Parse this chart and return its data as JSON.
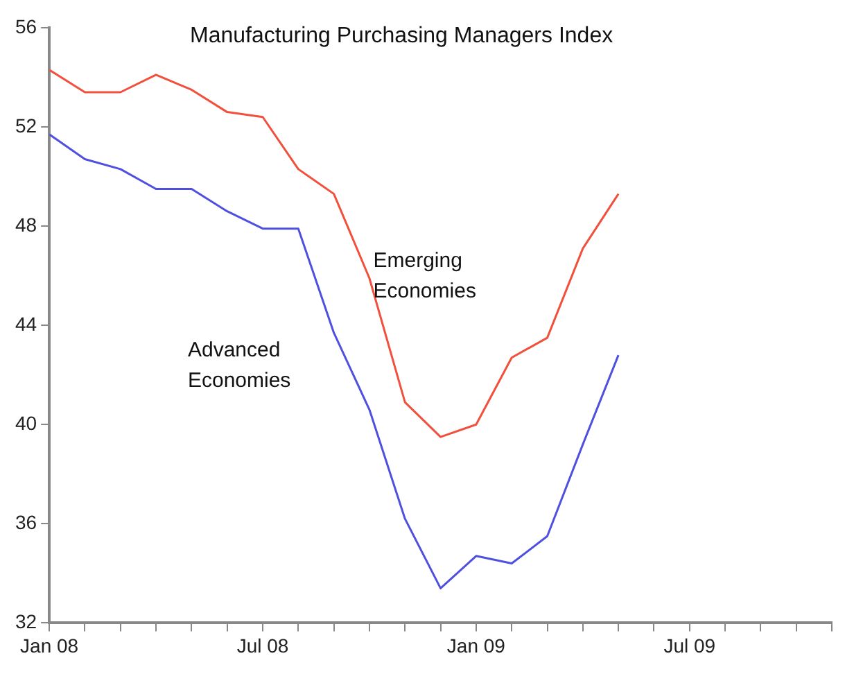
{
  "chart_data": {
    "type": "line",
    "title": "Manufacturing Purchasing Managers Index",
    "x": [
      "2008-01",
      "2008-02",
      "2008-03",
      "2008-04",
      "2008-05",
      "2008-06",
      "2008-07",
      "2008-08",
      "2008-09",
      "2008-10",
      "2008-11",
      "2008-12",
      "2009-01",
      "2009-02",
      "2009-03",
      "2009-04",
      "2009-05"
    ],
    "series": [
      {
        "name": "Emerging Economies",
        "color": "#f0503c",
        "values": [
          54.3,
          53.4,
          53.4,
          54.1,
          53.5,
          52.6,
          52.4,
          50.3,
          49.3,
          45.9,
          40.9,
          39.5,
          40.0,
          42.7,
          43.5,
          47.1,
          49.3
        ]
      },
      {
        "name": "Advanced Economies",
        "color": "#5050e0",
        "values": [
          51.7,
          50.7,
          50.3,
          49.5,
          49.5,
          48.6,
          47.9,
          47.9,
          43.7,
          40.6,
          36.2,
          33.4,
          34.7,
          34.4,
          35.5,
          39.2,
          42.8
        ]
      }
    ],
    "xlim": [
      "2008-01",
      "2009-11"
    ],
    "xticks": [
      {
        "value": "2008-01",
        "label": "Jan 08"
      },
      {
        "value": "2008-02",
        "label": null
      },
      {
        "value": "2008-03",
        "label": null
      },
      {
        "value": "2008-04",
        "label": null
      },
      {
        "value": "2008-05",
        "label": null
      },
      {
        "value": "2008-06",
        "label": null
      },
      {
        "value": "2008-07",
        "label": "Jul 08"
      },
      {
        "value": "2008-08",
        "label": null
      },
      {
        "value": "2008-09",
        "label": null
      },
      {
        "value": "2008-10",
        "label": null
      },
      {
        "value": "2008-11",
        "label": null
      },
      {
        "value": "2008-12",
        "label": null
      },
      {
        "value": "2009-01",
        "label": "Jan 09"
      },
      {
        "value": "2009-02",
        "label": null
      },
      {
        "value": "2009-03",
        "label": null
      },
      {
        "value": "2009-04",
        "label": null
      },
      {
        "value": "2009-05",
        "label": null
      },
      {
        "value": "2009-06",
        "label": null
      },
      {
        "value": "2009-07",
        "label": "Jul 09"
      },
      {
        "value": "2009-08",
        "label": null
      },
      {
        "value": "2009-09",
        "label": null
      },
      {
        "value": "2009-10",
        "label": null
      },
      {
        "value": "2009-11",
        "label": null
      }
    ],
    "ylim": [
      32,
      56
    ],
    "yticks": [
      32,
      36,
      40,
      44,
      48,
      52,
      56
    ],
    "grid": false,
    "legend": false,
    "marker": "none",
    "line_style": "solid"
  }
}
